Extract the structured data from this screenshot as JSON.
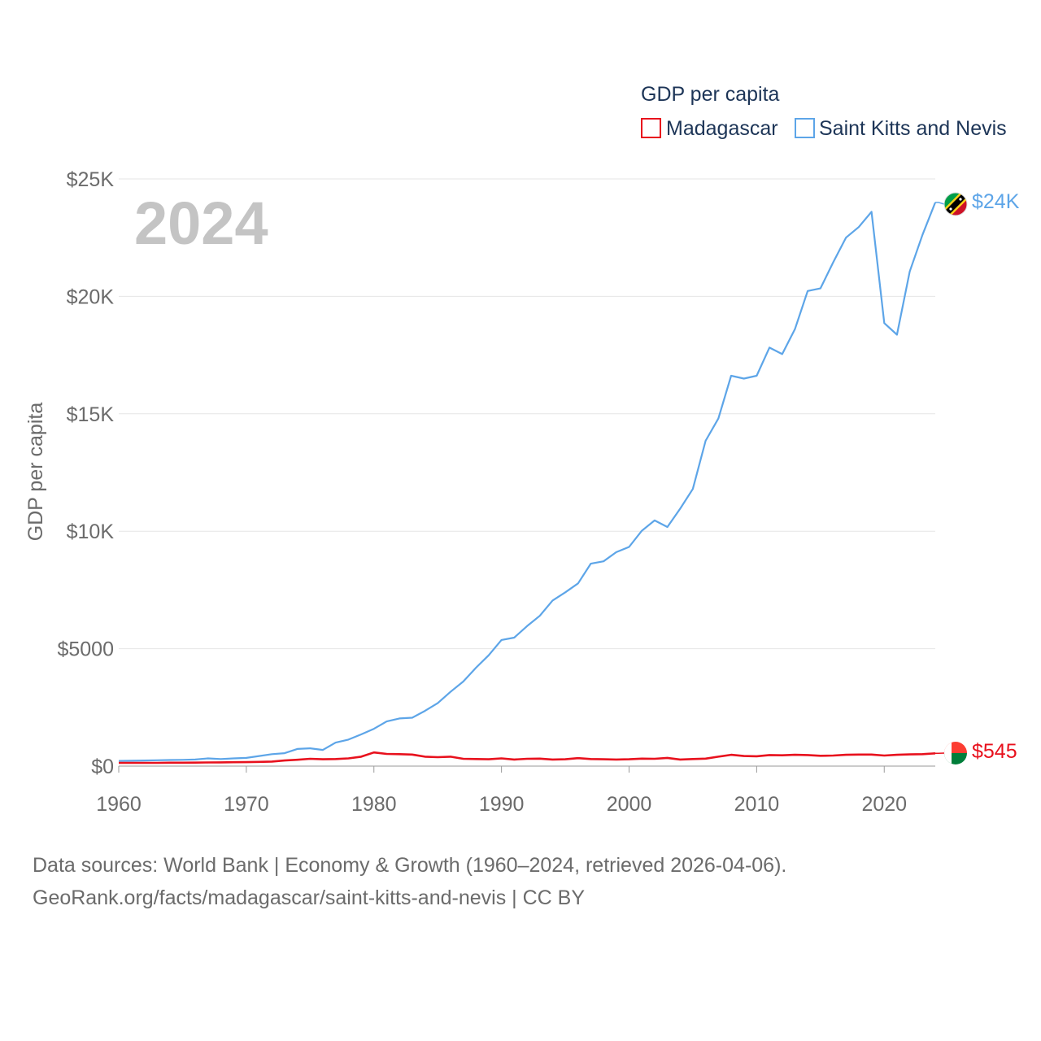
{
  "chart_data": {
    "type": "line",
    "year_label": "2024",
    "legend_title": "GDP per capita",
    "ylabel": "GDP per capita",
    "xlim": [
      1960,
      2024
    ],
    "ylim": [
      0,
      25000
    ],
    "x_ticks": [
      1960,
      1970,
      1980,
      1990,
      2000,
      2010,
      2020
    ],
    "x_tick_labels": [
      "1960",
      "1970",
      "1980",
      "1990",
      "2000",
      "2010",
      "2020"
    ],
    "y_ticks": [
      0,
      5000,
      10000,
      15000,
      20000,
      25000
    ],
    "y_tick_labels": [
      "$0",
      "$5000",
      "$10K",
      "$15K",
      "$20K",
      "$25K"
    ],
    "series": [
      {
        "name": "Madagascar",
        "color": "#e8111d",
        "end_label": "$545",
        "x": [
          1960,
          1961,
          1962,
          1963,
          1964,
          1965,
          1966,
          1967,
          1968,
          1969,
          1970,
          1971,
          1972,
          1973,
          1974,
          1975,
          1976,
          1977,
          1978,
          1979,
          1980,
          1981,
          1982,
          1983,
          1984,
          1985,
          1986,
          1987,
          1988,
          1989,
          1990,
          1991,
          1992,
          1993,
          1994,
          1995,
          1996,
          1997,
          1998,
          1999,
          2000,
          2001,
          2002,
          2003,
          2004,
          2005,
          2006,
          2007,
          2008,
          2009,
          2010,
          2011,
          2012,
          2013,
          2014,
          2015,
          2016,
          2017,
          2018,
          2019,
          2020,
          2021,
          2022,
          2023,
          2024
        ],
        "values": [
          140,
          140,
          140,
          140,
          145,
          145,
          150,
          155,
          160,
          165,
          170,
          180,
          195,
          240,
          270,
          310,
          290,
          300,
          330,
          400,
          580,
          520,
          510,
          490,
          400,
          380,
          400,
          310,
          300,
          290,
          330,
          280,
          310,
          320,
          280,
          290,
          340,
          300,
          290,
          280,
          290,
          320,
          310,
          350,
          280,
          300,
          320,
          400,
          480,
          430,
          420,
          470,
          460,
          480,
          470,
          440,
          450,
          480,
          490,
          490,
          450,
          480,
          500,
          510,
          545
        ]
      },
      {
        "name": "Saint Kitts and Nevis",
        "color": "#5da5e8",
        "end_label": "$24K",
        "x": [
          1960,
          1961,
          1962,
          1963,
          1964,
          1965,
          1966,
          1967,
          1968,
          1969,
          1970,
          1971,
          1972,
          1973,
          1974,
          1975,
          1976,
          1977,
          1978,
          1979,
          1980,
          1981,
          1982,
          1983,
          1984,
          1985,
          1986,
          1987,
          1988,
          1989,
          1990,
          1991,
          1992,
          1993,
          1994,
          1995,
          1996,
          1997,
          1998,
          1999,
          2000,
          2001,
          2002,
          2003,
          2004,
          2005,
          2006,
          2007,
          2008,
          2009,
          2010,
          2011,
          2012,
          2013,
          2014,
          2015,
          2016,
          2017,
          2018,
          2019,
          2020,
          2021,
          2022,
          2023,
          2024
        ],
        "values": [
          220,
          230,
          240,
          250,
          260,
          265,
          280,
          330,
          300,
          330,
          350,
          430,
          510,
          550,
          730,
          760,
          690,
          1000,
          1130,
          1350,
          1590,
          1900,
          2030,
          2060,
          2350,
          2680,
          3160,
          3600,
          4190,
          4720,
          5370,
          5470,
          5960,
          6400,
          7050,
          7400,
          7780,
          8620,
          8720,
          9110,
          9330,
          10020,
          10460,
          10180,
          10960,
          11800,
          13850,
          14800,
          16620,
          16500,
          16620,
          17820,
          17540,
          18600,
          20230,
          20340,
          21450,
          22500,
          22950,
          23600,
          18860,
          18370,
          21060,
          22620,
          24000
        ]
      }
    ]
  },
  "footer": {
    "line1": "Data sources: World Bank | Economy & Growth (1960–2024, retrieved 2026-04-06).",
    "line2": "GeoRank.org/facts/madagascar/saint-kitts-and-nevis | CC BY"
  }
}
